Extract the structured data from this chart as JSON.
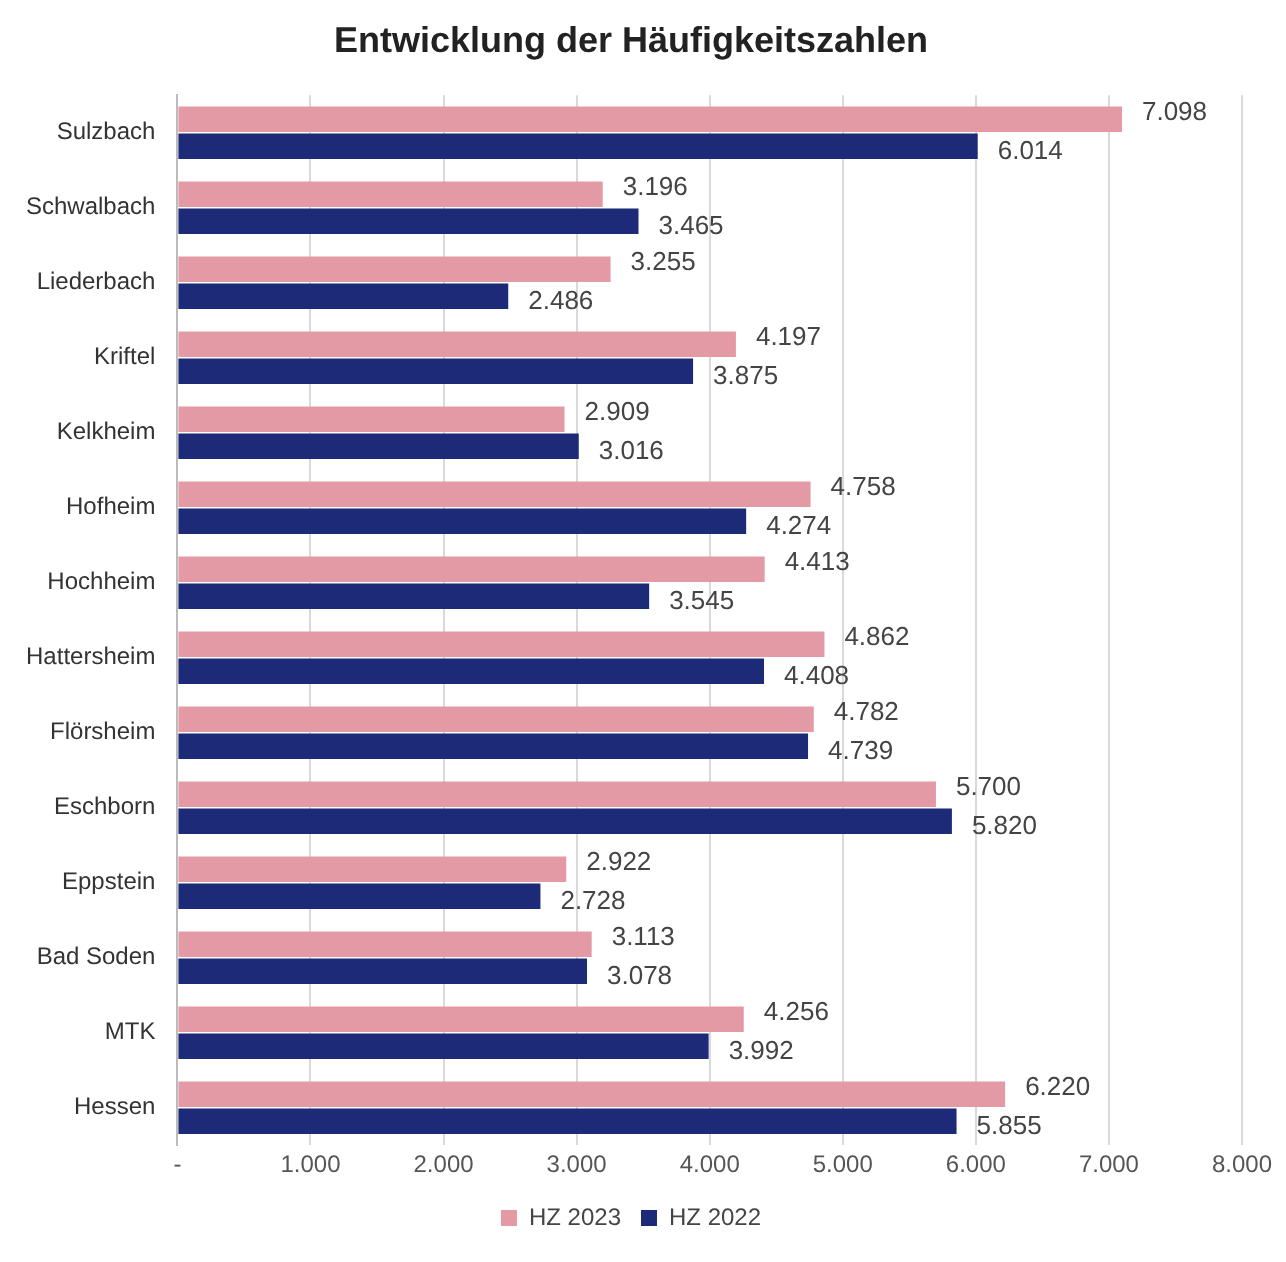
{
  "chart_data": {
    "type": "bar",
    "orientation": "horizontal",
    "title": "Entwicklung der Häufigkeitszahlen",
    "categories": [
      "Sulzbach",
      "Schwalbach",
      "Liederbach",
      "Kriftel",
      "Kelkheim",
      "Hofheim",
      "Hochheim",
      "Hattersheim",
      "Flörsheim",
      "Eschborn",
      "Eppstein",
      "Bad Soden",
      "MTK",
      "Hessen"
    ],
    "series": [
      {
        "name": "HZ 2023",
        "color": "#e39aa4",
        "values": [
          7098,
          3196,
          3255,
          4197,
          2909,
          4758,
          4413,
          4862,
          4782,
          5700,
          2922,
          3113,
          4256,
          6220
        ],
        "value_labels": [
          "7.098",
          "3.196",
          "3.255",
          "4.197",
          "2.909",
          "4.758",
          "4.413",
          "4.862",
          "4.782",
          "5.700",
          "2.922",
          "3.113",
          "4.256",
          "6.220"
        ]
      },
      {
        "name": "HZ 2022",
        "color": "#1c2a78",
        "values": [
          6014,
          3465,
          2486,
          3875,
          3016,
          4274,
          3545,
          4408,
          4739,
          5820,
          2728,
          3078,
          3992,
          5855
        ],
        "value_labels": [
          "6.014",
          "3.465",
          "2.486",
          "3.875",
          "3.016",
          "4.274",
          "3.545",
          "4.408",
          "4.739",
          "5.820",
          "2.728",
          "3.078",
          "3.992",
          "5.855"
        ]
      }
    ],
    "xlim": [
      0,
      8000
    ],
    "xticks": [
      {
        "value": 0,
        "label": "-"
      },
      {
        "value": 1000,
        "label": "1.000"
      },
      {
        "value": 2000,
        "label": "2.000"
      },
      {
        "value": 3000,
        "label": "3.000"
      },
      {
        "value": 4000,
        "label": "4.000"
      },
      {
        "value": 5000,
        "label": "5.000"
      },
      {
        "value": 6000,
        "label": "6.000"
      },
      {
        "value": 7000,
        "label": "7.000"
      },
      {
        "value": 8000,
        "label": "8.000"
      }
    ],
    "grid": "x",
    "legend": "bottom"
  }
}
